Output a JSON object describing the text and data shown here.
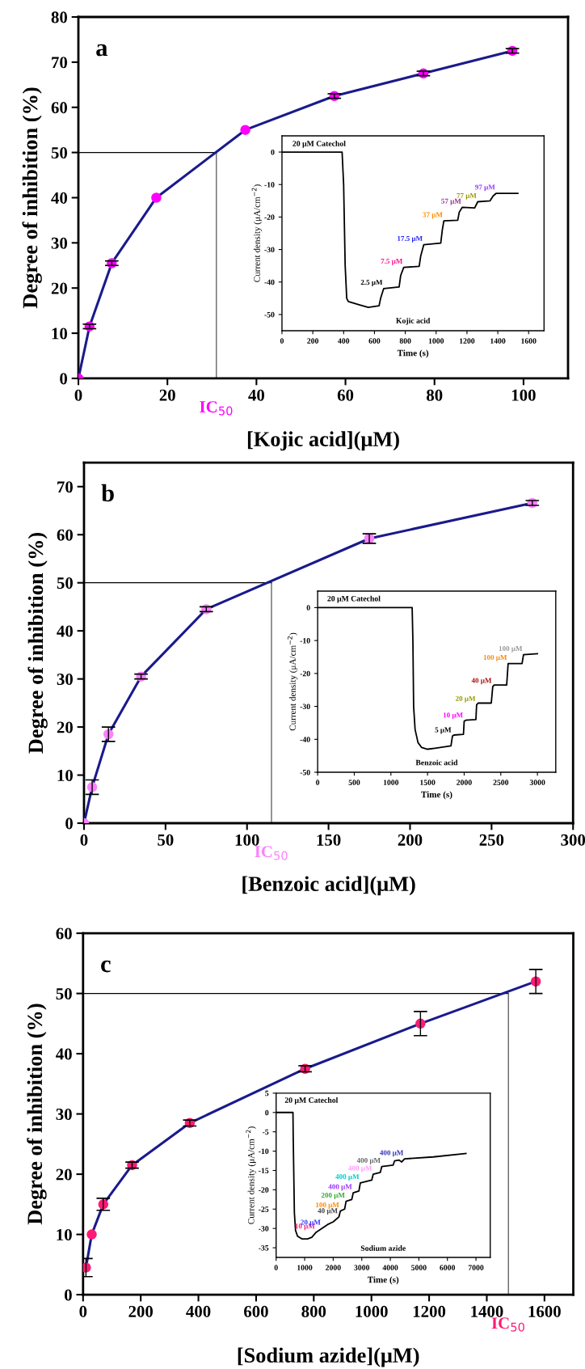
{
  "chart_data": [
    {
      "type": "line",
      "title": "a",
      "xlabel": "[Kojic acid](μM)",
      "ylabel": "Degree of inhibition (%)",
      "xlim": [
        0,
        110
      ],
      "ylim": [
        0,
        80
      ],
      "xticks": [
        0,
        20,
        40,
        60,
        80,
        100
      ],
      "yticks": [
        0,
        10,
        20,
        30,
        40,
        50,
        60,
        70,
        80
      ],
      "marker": "circle",
      "grid": false,
      "legend": false,
      "x": [
        0,
        2.5,
        7.5,
        17.5,
        37.5,
        57.5,
        77.5,
        97.5
      ],
      "series": [
        {
          "color": "#1a1a8c",
          "colors": [
            "#ff00ff",
            "#ff00ff",
            "#ff00ff",
            "#ff00ff",
            "#ff00ff",
            "#ff00ff",
            "#ff00ff",
            "#ff00ff"
          ],
          "values": [
            0,
            11.5,
            25.5,
            40,
            55,
            62.5,
            67.5,
            72.5
          ],
          "errors": [
            null,
            0.5,
            0.5,
            null,
            null,
            0.5,
            0.5,
            0.5
          ]
        }
      ],
      "ref_lines": [
        {
          "axis": "y",
          "value": 50,
          "color": "#000000"
        },
        {
          "axis": "x",
          "value": 31,
          "label": "IC$_{50}$",
          "color": "#555555"
        }
      ]
    },
    {
      "type": "line",
      "xlabel": "Time (s)",
      "ylabel": "Current density (μA/cm$^{−2}$)",
      "xlim": [
        0,
        1700
      ],
      "ylim": [
        -55,
        5
      ],
      "xticks": [
        0,
        200,
        400,
        600,
        800,
        1000,
        1200,
        1400,
        1600
      ],
      "yticks": [
        0,
        -10,
        -20,
        -30,
        -40,
        -50
      ],
      "marker": "none",
      "grid": false,
      "legend": false,
      "x": [
        0,
        390,
        400,
        410,
        420,
        430,
        500,
        560,
        630,
        640,
        660,
        760,
        770,
        790,
        890,
        900,
        920,
        1030,
        1040,
        1050,
        1140,
        1150,
        1170,
        1250,
        1270,
        1350,
        1370,
        1390,
        1530
      ],
      "series": [
        {
          "color": "#000000",
          "values": [
            0,
            0,
            -10,
            -35,
            -45,
            -46,
            -47,
            -47.8,
            -47.3,
            -45,
            -42,
            -41.5,
            -38,
            -35.5,
            -35.2,
            -32,
            -28.5,
            -28,
            -24,
            -21.2,
            -21,
            -18.5,
            -17,
            -17.2,
            -15.3,
            -15,
            -13.5,
            -12.7,
            -12.7
          ]
        }
      ],
      "annotations": [
        "20 μM Catechol",
        {
          "text": "2.5 μM",
          "x": 660,
          "y": -42
        },
        {
          "text": "7.5 μM",
          "x": 790,
          "y": -35.5
        },
        {
          "text": "17.5 μM",
          "x": 920,
          "y": -28.5
        },
        {
          "text": "37 μM",
          "x": 1050,
          "y": -21.2
        },
        {
          "text": "57 μM",
          "x": 1170,
          "y": -17
        },
        {
          "text": "77 μM",
          "x": 1270,
          "y": -15.3
        },
        {
          "text": "97 μM",
          "x": 1390,
          "y": -12.7
        },
        "Kojic acid"
      ]
    },
    {
      "type": "line",
      "title": "b",
      "xlabel": "[Benzoic acid](μM)",
      "ylabel": "Degree of inhibition (%)",
      "xlim": [
        0,
        300
      ],
      "ylim": [
        0,
        75
      ],
      "xticks": [
        0,
        50,
        100,
        150,
        200,
        250,
        300
      ],
      "yticks": [
        0,
        10,
        20,
        30,
        40,
        50,
        60,
        70
      ],
      "marker": "circle",
      "grid": false,
      "legend": false,
      "x": [
        0,
        5,
        15,
        35,
        75,
        175,
        275
      ],
      "series": [
        {
          "color": "#1a1a8c",
          "colors": [
            "#ff80ff",
            "#ff80ff",
            "#ff80ff",
            "#ff80ff",
            "#ff80ff",
            "#ff80ff",
            "#ff80ff"
          ],
          "values": [
            0,
            7.5,
            18.5,
            30.5,
            44.5,
            59.2,
            66.6
          ],
          "errors": [
            null,
            1.5,
            1.5,
            0.5,
            0.5,
            1,
            0.5
          ]
        }
      ],
      "ref_lines": [
        {
          "axis": "y",
          "value": 50,
          "color": "#000000"
        },
        {
          "axis": "x",
          "value": 115,
          "label": "IC$_{50}$",
          "color": "#555555"
        }
      ]
    },
    {
      "type": "line",
      "xlabel": "Time (s)",
      "ylabel": "Current density (μA/cm$^{−2}$)",
      "xlim": [
        0,
        3250
      ],
      "ylim": [
        -50,
        5
      ],
      "xticks": [
        0,
        500,
        1000,
        1500,
        2000,
        2500,
        3000
      ],
      "yticks": [
        0,
        -10,
        -20,
        -30,
        -40,
        -50
      ],
      "marker": "none",
      "grid": false,
      "legend": false,
      "x": [
        0,
        1290,
        1300,
        1310,
        1330,
        1370,
        1420,
        1500,
        1600,
        1820,
        1840,
        1860,
        1990,
        2000,
        2020,
        2160,
        2170,
        2190,
        2370,
        2390,
        2410,
        2580,
        2600,
        2790,
        2810,
        3000
      ],
      "series": [
        {
          "color": "#000000",
          "values": [
            0,
            0,
            -10,
            -30,
            -37,
            -41,
            -42.5,
            -43,
            -42.7,
            -42,
            -39,
            -38.7,
            -38.5,
            -34.5,
            -34.2,
            -34,
            -29.5,
            -29,
            -29,
            -24,
            -23.5,
            -23.5,
            -17,
            -17,
            -14.3,
            -14
          ]
        }
      ],
      "annotations": [
        "20 μM Catechol",
        {
          "text": "5 μM",
          "x": 1840,
          "y": -39
        },
        {
          "text": "10 μM",
          "x": 2000,
          "y": -34.5
        },
        {
          "text": "20 μM",
          "x": 2170,
          "y": -29.5
        },
        {
          "text": "40 μM",
          "x": 2390,
          "y": -24
        },
        {
          "text": "100 μM",
          "x": 2600,
          "y": -17
        },
        {
          "text": "100 μM",
          "x": 2810,
          "y": -14.3
        },
        "Benzoic acid"
      ]
    },
    {
      "type": "line",
      "title": "c",
      "xlabel": "[Sodium azide](μM)",
      "ylabel": "Degree of inhibition (%)",
      "xlim": [
        0,
        1700
      ],
      "ylim": [
        0,
        60
      ],
      "xticks": [
        0,
        200,
        400,
        600,
        800,
        1000,
        1200,
        1400,
        1600
      ],
      "yticks": [
        0,
        10,
        20,
        30,
        40,
        50,
        60
      ],
      "marker": "circle",
      "grid": false,
      "legend": false,
      "x": [
        10,
        30,
        70,
        170,
        370,
        770,
        1170,
        1570
      ],
      "series": [
        {
          "color": "#1a1a8c",
          "colors": [
            "#ff1a75",
            "#ff1a75",
            "#ff1a75",
            "#ff1a75",
            "#ff1a75",
            "#ff1a75",
            "#ff1a75",
            "#ff1a75"
          ],
          "values": [
            4.5,
            10,
            15,
            21.5,
            28.5,
            37.5,
            45,
            52
          ],
          "errors": [
            1.5,
            null,
            1,
            0.5,
            0.5,
            0.5,
            2,
            2
          ]
        }
      ],
      "ref_lines": [
        {
          "axis": "y",
          "value": 50,
          "color": "#000000"
        },
        {
          "axis": "x",
          "value": 1475,
          "label": "IC$_{50}$",
          "color": "#555555"
        }
      ]
    },
    {
      "type": "line",
      "xlabel": "Time (s)",
      "ylabel": "Current density (μA/cm$^{−2}$)",
      "xlim": [
        0,
        7500
      ],
      "ylim": [
        -37.5,
        5
      ],
      "xticks": [
        0,
        1000,
        2000,
        3000,
        4000,
        5000,
        6000,
        7000
      ],
      "yticks": [
        5,
        0,
        -5,
        -10,
        -15,
        -20,
        -25,
        -30,
        -35
      ],
      "marker": "none",
      "grid": false,
      "legend": false,
      "x": [
        0,
        590,
        600,
        640,
        680,
        750,
        900,
        1100,
        1250,
        1400,
        1600,
        1800,
        2000,
        2200,
        2250,
        2400,
        2450,
        2650,
        2700,
        2900,
        2950,
        3350,
        3400,
        3650,
        3700,
        4100,
        4150,
        4300,
        4400,
        4500,
        5500,
        6650
      ],
      "series": [
        {
          "color": "#000000",
          "values": [
            0,
            0,
            -7,
            -26,
            -30.5,
            -32,
            -32.7,
            -32.7,
            -32.3,
            -31,
            -30,
            -29,
            -28.3,
            -27,
            -25.5,
            -25,
            -23,
            -22.5,
            -20.8,
            -20.3,
            -18.2,
            -17.5,
            -16,
            -15.5,
            -14,
            -13.6,
            -12.5,
            -12.3,
            -12.8,
            -12,
            -11.5,
            -10.6
          ]
        }
      ],
      "annotations": [
        "20 μM Catechol",
        {
          "text": "10 μM",
          "x": 1400,
          "y": -31
        },
        {
          "text": "20 μM",
          "x": 1600,
          "y": -30
        },
        {
          "text": "40 μM",
          "x": 2200,
          "y": -27
        },
        {
          "text": "100 μM",
          "x": 2250,
          "y": -25.5
        },
        {
          "text": "200 μM",
          "x": 2450,
          "y": -23
        },
        {
          "text": "400 μM",
          "x": 2700,
          "y": -20.8
        },
        {
          "text": "400 μM",
          "x": 2950,
          "y": -18.2
        },
        {
          "text": "400 μM",
          "x": 3400,
          "y": -16
        },
        {
          "text": "400 μM",
          "x": 3700,
          "y": -14
        },
        {
          "text": "400 μM",
          "x": 4500,
          "y": -12
        },
        "Sodium azide"
      ]
    }
  ]
}
